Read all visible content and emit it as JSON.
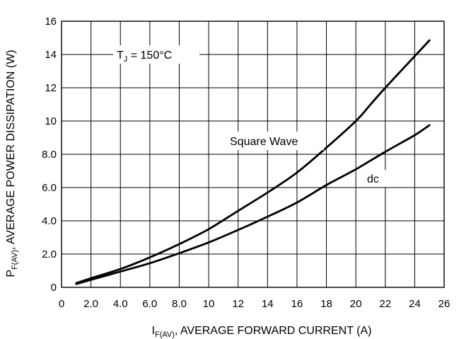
{
  "chart_data": {
    "type": "line",
    "xlabel": {
      "main": "I",
      "sub": "F(AV)",
      "rest": ", AVERAGE FORWARD CURRENT (A)"
    },
    "ylabel": {
      "main": "P",
      "sub": "F(AV)",
      "rest": ", AVERAGE POWER DISSIPATION (W)"
    },
    "xlim": [
      0,
      26
    ],
    "ylim": [
      0,
      16
    ],
    "xticks": [
      {
        "value": 0,
        "label": "0"
      },
      {
        "value": 2,
        "label": "2.0"
      },
      {
        "value": 4,
        "label": "4.0"
      },
      {
        "value": 6,
        "label": "6.0"
      },
      {
        "value": 8,
        "label": "8.0"
      },
      {
        "value": 10,
        "label": "10"
      },
      {
        "value": 12,
        "label": "12"
      },
      {
        "value": 14,
        "label": "14"
      },
      {
        "value": 16,
        "label": "16"
      },
      {
        "value": 18,
        "label": "18"
      },
      {
        "value": 20,
        "label": "20"
      },
      {
        "value": 22,
        "label": "22"
      },
      {
        "value": 24,
        "label": "24"
      },
      {
        "value": 26,
        "label": "26"
      }
    ],
    "yticks": [
      {
        "value": 0,
        "label": "0"
      },
      {
        "value": 2,
        "label": "2.0"
      },
      {
        "value": 4,
        "label": "4.0"
      },
      {
        "value": 6,
        "label": "6.0"
      },
      {
        "value": 8,
        "label": "8.0"
      },
      {
        "value": 10,
        "label": "10"
      },
      {
        "value": 12,
        "label": "12"
      },
      {
        "value": 14,
        "label": "14"
      },
      {
        "value": 16,
        "label": "16"
      }
    ],
    "grid": true,
    "series": [
      {
        "name": "Square Wave",
        "x": [
          1,
          2,
          4,
          6,
          8,
          10,
          12,
          14,
          16,
          18,
          20,
          21,
          22,
          24,
          25
        ],
        "y": [
          0.25,
          0.55,
          1.1,
          1.8,
          2.6,
          3.5,
          4.6,
          5.7,
          6.9,
          8.4,
          10.0,
          11.0,
          12.0,
          13.9,
          14.85
        ]
      },
      {
        "name": "dc",
        "x": [
          1,
          2,
          4,
          6,
          8,
          10,
          12,
          14,
          16,
          18,
          20,
          22,
          24,
          25
        ],
        "y": [
          0.2,
          0.45,
          0.95,
          1.45,
          2.05,
          2.7,
          3.45,
          4.25,
          5.1,
          6.15,
          7.1,
          8.15,
          9.15,
          9.75
        ]
      }
    ],
    "annotations": [
      {
        "name": "tj",
        "main": "T",
        "sub": "J",
        "rest": " = 150°C"
      }
    ],
    "colors": {
      "line": "#000000",
      "grid": "#000000",
      "background": "#ffffff"
    }
  }
}
